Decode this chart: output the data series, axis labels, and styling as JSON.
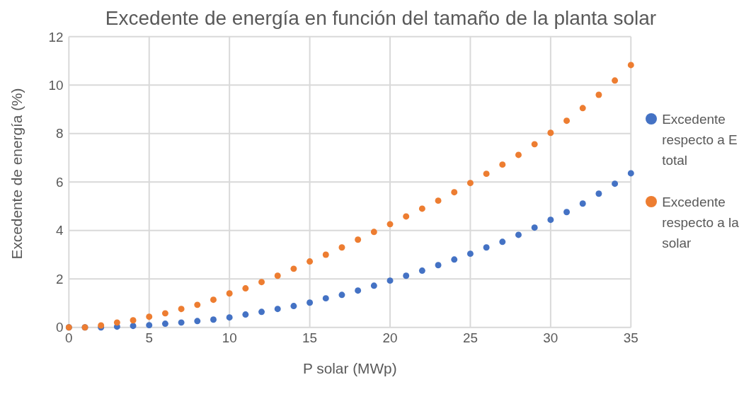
{
  "chart_data": {
    "type": "scatter",
    "title": "Excedente de energía en función del tamaño de la planta solar",
    "xlabel": "P solar (MWp)",
    "ylabel": "Excedente de energía (%)",
    "x": [
      0,
      1,
      2,
      3,
      4,
      5,
      6,
      7,
      8,
      9,
      10,
      11,
      12,
      13,
      14,
      15,
      16,
      17,
      18,
      19,
      20,
      21,
      22,
      23,
      24,
      25,
      26,
      27,
      28,
      29,
      30,
      31,
      32,
      33,
      34,
      35
    ],
    "series": [
      {
        "name": "Excedente respecto a E total",
        "color": "#4472c4",
        "values": [
          0,
          0,
          0,
          0.03,
          0.06,
          0.09,
          0.15,
          0.2,
          0.26,
          0.32,
          0.41,
          0.53,
          0.64,
          0.76,
          0.88,
          1.02,
          1.2,
          1.34,
          1.52,
          1.72,
          1.93,
          2.13,
          2.34,
          2.57,
          2.8,
          3.04,
          3.3,
          3.53,
          3.82,
          4.12,
          4.44,
          4.76,
          5.11,
          5.52,
          5.93,
          6.36
        ]
      },
      {
        "name": "Excedente respecto a la solar",
        "color": "#ed7d31",
        "values": [
          0,
          0,
          0.08,
          0.2,
          0.29,
          0.44,
          0.58,
          0.76,
          0.93,
          1.14,
          1.4,
          1.61,
          1.87,
          2.13,
          2.42,
          2.72,
          3.0,
          3.3,
          3.62,
          3.94,
          4.26,
          4.58,
          4.9,
          5.23,
          5.58,
          5.96,
          6.34,
          6.72,
          7.12,
          7.56,
          8.03,
          8.53,
          9.05,
          9.6,
          10.19,
          10.83
        ]
      }
    ],
    "xlim": [
      0,
      35
    ],
    "xticks": [
      0,
      5,
      10,
      15,
      20,
      25,
      30,
      35
    ],
    "ylim": [
      0,
      12
    ],
    "yticks": [
      0,
      2,
      4,
      6,
      8,
      10,
      12
    ],
    "grid": true,
    "legend": "right",
    "marker": "circle"
  }
}
